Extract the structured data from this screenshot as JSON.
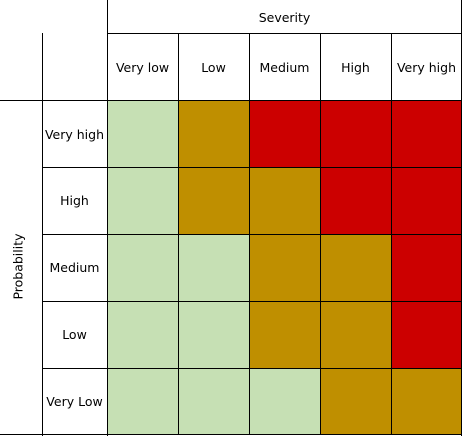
{
  "matrix": {
    "column_axis_title": "Severity",
    "row_axis_title": "Probability",
    "columns": [
      "Very low",
      "Low",
      "Medium",
      "High",
      "Very high"
    ],
    "rows": [
      "Very high",
      "High",
      "Medium",
      "Low",
      "Very Low"
    ],
    "colors": {
      "low_risk": "#c6e0b4",
      "medium_risk": "#bf8f00",
      "high_risk": "#cc0000"
    },
    "levels": [
      [
        "low_risk",
        "medium_risk",
        "high_risk",
        "high_risk",
        "high_risk"
      ],
      [
        "low_risk",
        "medium_risk",
        "medium_risk",
        "high_risk",
        "high_risk"
      ],
      [
        "low_risk",
        "low_risk",
        "medium_risk",
        "medium_risk",
        "high_risk"
      ],
      [
        "low_risk",
        "low_risk",
        "medium_risk",
        "medium_risk",
        "high_risk"
      ],
      [
        "low_risk",
        "low_risk",
        "low_risk",
        "medium_risk",
        "medium_risk"
      ]
    ]
  }
}
